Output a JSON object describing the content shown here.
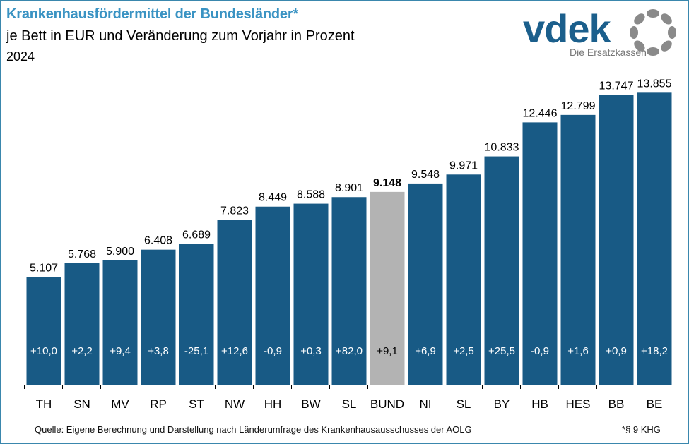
{
  "header": {
    "title": "Krankenhausfördermittel der Bundesländer*",
    "subtitle": "je Bett in EUR und Veränderung zum Vorjahr in Prozent",
    "year": "2024"
  },
  "logo": {
    "name": "vdek",
    "tagline": "Die Ersatzkassen"
  },
  "footer": {
    "source": "Quelle: Eigene Berechnung und Darstellung nach Länderumfrage des Krankenhausausschusses  der AOLG",
    "footnote": "*§ 9 KHG"
  },
  "colors": {
    "bar": "#185a85",
    "highlight_bar": "#b3b3b3",
    "title": "#3a93c3",
    "frame": "#3a87ad"
  },
  "chart_data": {
    "type": "bar",
    "title": "Krankenhausfördermittel der Bundesländer*",
    "subtitle": "je Bett in EUR und Veränderung zum Vorjahr in Prozent",
    "xlabel": "",
    "ylabel": "",
    "ylim": [
      0,
      14000
    ],
    "grid": false,
    "categories": [
      "TH",
      "SN",
      "MV",
      "RP",
      "ST",
      "NW",
      "HH",
      "BW",
      "SL",
      "BUND",
      "NI",
      "SL",
      "BY",
      "HB",
      "HES",
      "BB",
      "BE"
    ],
    "series": [
      {
        "name": "Fördermittel je Bett (EUR)",
        "values": [
          5107,
          5768,
          5900,
          6408,
          6689,
          7823,
          8449,
          8588,
          8901,
          9148,
          9548,
          9971,
          10833,
          12446,
          12799,
          13747,
          13855
        ],
        "labels": [
          "5.107",
          "5.768",
          "5.900",
          "6.408",
          "6.689",
          "7.823",
          "8.449",
          "8.588",
          "8.901",
          "9.148",
          "9.548",
          "9.971",
          "10.833",
          "12.446",
          "12.799",
          "13.747",
          "13.855"
        ]
      },
      {
        "name": "Veränderung zum Vorjahr (%)",
        "values": [
          10.0,
          2.2,
          9.4,
          3.8,
          -25.1,
          12.6,
          -0.9,
          0.3,
          82.0,
          9.1,
          6.9,
          2.5,
          25.5,
          -0.9,
          1.6,
          0.9,
          18.2
        ],
        "labels": [
          "+10,0",
          "+2,2",
          "+9,4",
          "+3,8",
          "-25,1",
          "+12,6",
          "-0,9",
          "+0,3",
          "+82,0",
          "+9,1",
          "+6,9",
          "+2,5",
          "+25,5",
          "-0,9",
          "+1,6",
          "+0,9",
          "+18,2"
        ]
      }
    ],
    "highlight_category": "BUND"
  }
}
